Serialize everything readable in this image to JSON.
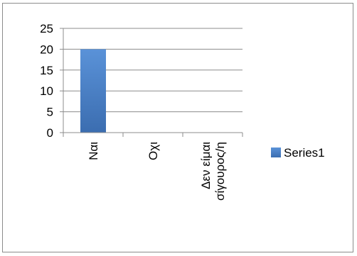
{
  "chart_data": {
    "type": "bar",
    "categories": [
      "Ναι",
      "Οχι",
      "Δεν είμαι σίγουρος/η"
    ],
    "category_lines": [
      [
        "Ναι"
      ],
      [
        "Οχι"
      ],
      [
        "Δεν είμαι",
        "σίγουρος/η"
      ]
    ],
    "series": [
      {
        "name": "Series1",
        "values": [
          20,
          0,
          0
        ],
        "color": "#4f81bd"
      }
    ],
    "y_ticks": [
      "0",
      "5",
      "10",
      "15",
      "20",
      "25"
    ],
    "ylim": [
      0,
      25
    ],
    "grid": true,
    "legend": "right",
    "title": "",
    "xlabel": "",
    "ylabel": ""
  }
}
